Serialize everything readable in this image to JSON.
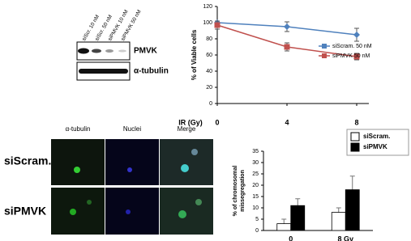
{
  "blot": {
    "lanes": [
      "siScr. 10 nM",
      "siScr. 50 nM",
      "siPMVK 10 nM",
      "siPMVK 50 nM"
    ],
    "bands": [
      "PMVK",
      "α-tubulin"
    ]
  },
  "microscopy": {
    "columns": [
      "α-tubulin",
      "Nuclei",
      "Merge"
    ],
    "rows": [
      "siScram.",
      "siPMVK"
    ]
  },
  "chart_data": [
    {
      "type": "line",
      "ylabel": "% of Viable cells",
      "xlabel": "IR (Gy)",
      "x": [
        0,
        4,
        8
      ],
      "xlim": [
        0,
        8
      ],
      "xticks": [
        0,
        4,
        8
      ],
      "ylim": [
        0,
        120
      ],
      "yticks": [
        0,
        20,
        40,
        60,
        80,
        100,
        120
      ],
      "series": [
        {
          "name": "siScram. 50 nM",
          "color": "#4f81bd",
          "marker": "diamond",
          "values": [
            100,
            95,
            85
          ],
          "errors": [
            0,
            6,
            8
          ]
        },
        {
          "name": "siPMVK 50 nM",
          "color": "#c0504d",
          "marker": "square",
          "values": [
            97,
            70,
            58
          ],
          "errors": [
            5,
            5,
            4
          ]
        }
      ]
    },
    {
      "type": "bar",
      "ylabel": [
        "% of chromosomal",
        "missegregation"
      ],
      "categories": [
        "0",
        "8 Gy"
      ],
      "ylim": [
        0,
        35
      ],
      "yticks": [
        0,
        5,
        10,
        15,
        20,
        25,
        30,
        35
      ],
      "series": [
        {
          "name": "siScram.",
          "color": "#ffffff",
          "values": [
            3,
            8
          ],
          "errors": [
            2,
            2
          ]
        },
        {
          "name": "siPMVK",
          "color": "#000000",
          "values": [
            11,
            18
          ],
          "errors": [
            3,
            6
          ]
        }
      ]
    }
  ]
}
